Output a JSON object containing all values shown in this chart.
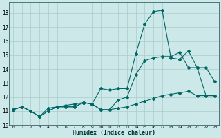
{
  "xlabel": "Humidex (Indice chaleur)",
  "bg_color": "#cce8e8",
  "grid_color": "#aacccc",
  "line_color": "#006666",
  "xlim": [
    -0.5,
    23.5
  ],
  "ylim": [
    10,
    18.8
  ],
  "yticks": [
    10,
    11,
    12,
    13,
    14,
    15,
    16,
    17,
    18
  ],
  "xticks": [
    0,
    1,
    2,
    3,
    4,
    5,
    6,
    7,
    8,
    9,
    10,
    11,
    12,
    13,
    14,
    15,
    16,
    17,
    18,
    19,
    20,
    21,
    22,
    23
  ],
  "line1_x": [
    0,
    1,
    2,
    3,
    4,
    5,
    6,
    7,
    8,
    9,
    10,
    11,
    12,
    13,
    14,
    15,
    16,
    17,
    18,
    19,
    20,
    21,
    22,
    23
  ],
  "line1_y": [
    11.1,
    11.3,
    11.0,
    10.6,
    11.0,
    11.3,
    11.3,
    11.3,
    11.6,
    11.5,
    11.1,
    11.1,
    11.2,
    11.3,
    11.5,
    11.7,
    11.9,
    12.1,
    12.2,
    12.3,
    12.4,
    12.1,
    12.1,
    12.1
  ],
  "line2_x": [
    0,
    1,
    2,
    3,
    4,
    5,
    6,
    7,
    8,
    9,
    10,
    11,
    12,
    13,
    14,
    15,
    16,
    17,
    18,
    19,
    20,
    21,
    22,
    23
  ],
  "line2_y": [
    11.1,
    11.3,
    11.0,
    10.6,
    11.0,
    11.3,
    11.4,
    11.5,
    11.6,
    11.5,
    12.6,
    12.5,
    12.6,
    12.6,
    15.1,
    17.2,
    18.1,
    18.2,
    14.8,
    14.7,
    15.3,
    14.1,
    14.1,
    13.1
  ],
  "line3_x": [
    0,
    1,
    2,
    3,
    4,
    5,
    6,
    7,
    8,
    9,
    10,
    11,
    12,
    13,
    14,
    15,
    16,
    17,
    18,
    19,
    20,
    21,
    22,
    23
  ],
  "line3_y": [
    11.1,
    11.3,
    11.0,
    10.6,
    11.2,
    11.3,
    11.3,
    11.3,
    11.6,
    11.5,
    11.1,
    11.1,
    11.8,
    12.0,
    13.6,
    14.6,
    14.8,
    14.9,
    14.9,
    15.2,
    14.1,
    14.1,
    12.1,
    12.1
  ]
}
